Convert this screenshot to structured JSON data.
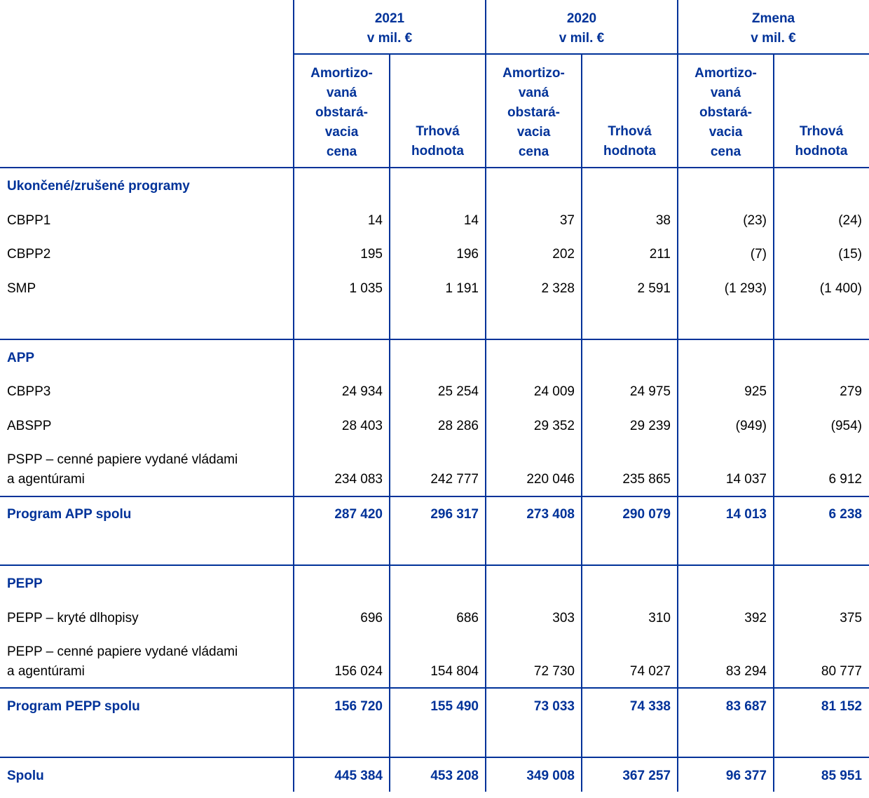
{
  "header": {
    "groups": [
      {
        "year": "2021",
        "unit": "v mil. €"
      },
      {
        "year": "2020",
        "unit": "v mil. €"
      },
      {
        "year": "Zmena",
        "unit": "v mil. €"
      }
    ],
    "sub_amortized": "Amortizo-\nvaná\nobstará-\nvacia\ncena",
    "sub_market": "Trhová\nhodnota"
  },
  "rows": [
    {
      "label": "Ukončené/zrušené programy",
      "style": "heading",
      "values": []
    },
    {
      "label": "CBPP1",
      "values": [
        "14",
        "14",
        "37",
        "38",
        "(23)",
        "(24)"
      ]
    },
    {
      "label": "CBPP2",
      "values": [
        "195",
        "196",
        "202",
        "211",
        "(7)",
        "(15)"
      ]
    },
    {
      "label": "SMP",
      "values": [
        "1 035",
        "1 191",
        "2 328",
        "2 591",
        "(1 293)",
        "(1 400)"
      ]
    },
    {
      "label": "APP",
      "style": "heading",
      "values": []
    },
    {
      "label": "CBPP3",
      "values": [
        "24 934",
        "25 254",
        "24 009",
        "24 975",
        "925",
        "279"
      ]
    },
    {
      "label": "ABSPP",
      "values": [
        "28 403",
        "28 286",
        "29 352",
        "29 239",
        "(949)",
        "(954)"
      ]
    },
    {
      "label": "PSPP – cenné papiere vydané vládami\na agentúrami",
      "values": [
        "234 083",
        "242 777",
        "220 046",
        "235 865",
        "14 037",
        "6 912"
      ]
    },
    {
      "label": "Program APP spolu",
      "style": "total",
      "values": [
        "287 420",
        "296 317",
        "273 408",
        "290 079",
        "14 013",
        "6 238"
      ]
    },
    {
      "label": "PEPP",
      "style": "heading",
      "values": []
    },
    {
      "label": "PEPP – kryté dlhopisy",
      "values": [
        "696",
        "686",
        "303",
        "310",
        "392",
        "375"
      ]
    },
    {
      "label": "PEPP – cenné papiere vydané vládami\na agentúrami",
      "values": [
        "156 024",
        "154 804",
        "72 730",
        "74 027",
        "83 294",
        "80 777"
      ]
    },
    {
      "label": "Program PEPP spolu",
      "style": "total",
      "values": [
        "156 720",
        "155 490",
        "73 033",
        "74 338",
        "83 687",
        "81 152"
      ]
    },
    {
      "label": "Spolu",
      "style": "total",
      "values": [
        "445 384",
        "453 208",
        "349 008",
        "367 257",
        "96 377",
        "85 951"
      ]
    }
  ],
  "colors": {
    "accent": "#003299"
  }
}
